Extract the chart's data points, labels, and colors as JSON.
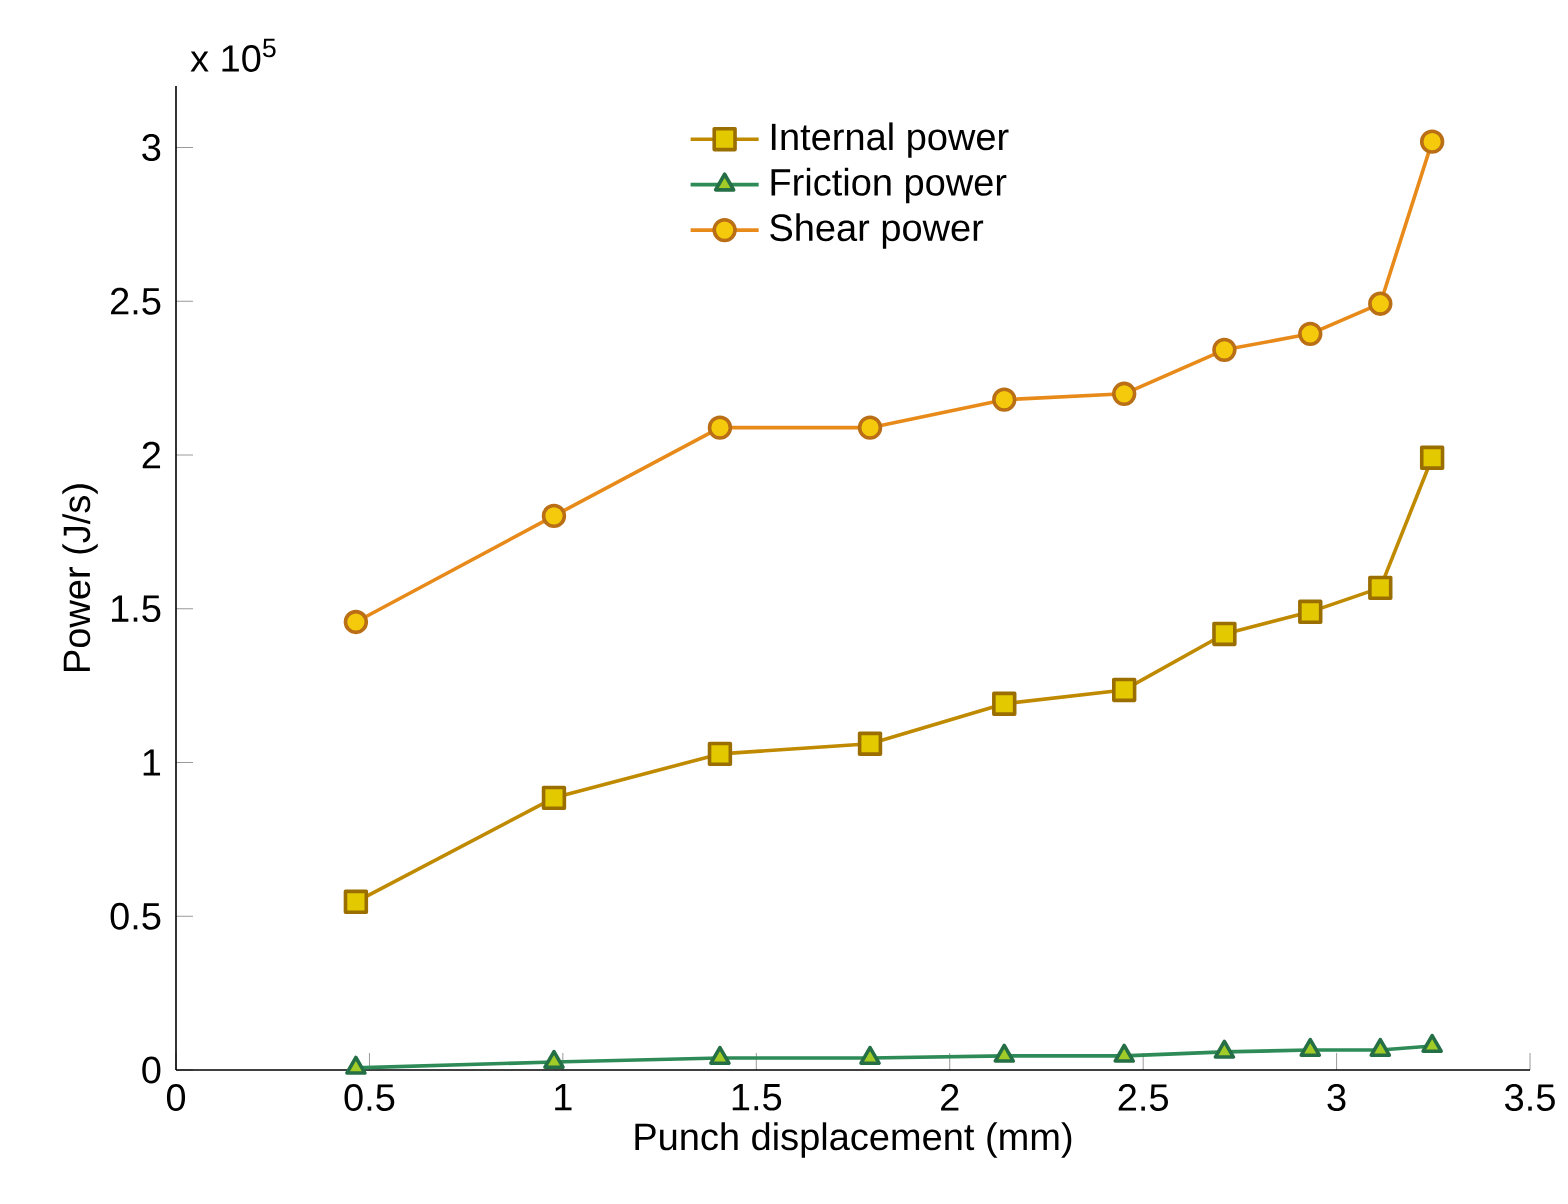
{
  "chart_data": {
    "type": "line",
    "xlabel": "Punch displacement (mm)",
    "ylabel": "Power (J/s)",
    "annotations": [
      "x 10$^{5}$"
    ],
    "x": [
      0.465,
      0.977,
      1.406,
      1.794,
      2.141,
      2.451,
      2.71,
      2.932,
      3.113,
      3.247
    ],
    "series": [
      {
        "name": "Internal power",
        "color": "#c08a00",
        "marker": "square",
        "values": [
          0.547,
          0.885,
          1.028,
          1.061,
          1.191,
          1.236,
          1.418,
          1.49,
          1.568,
          1.991
        ]
      },
      {
        "name": "Friction power",
        "color": "#2e8b57",
        "marker": "triangle",
        "values": [
          0.007,
          0.026,
          0.039,
          0.039,
          0.046,
          0.046,
          0.059,
          0.065,
          0.065,
          0.078
        ]
      },
      {
        "name": "Shear power",
        "color": "#e88a1a",
        "marker": "circle",
        "values": [
          1.457,
          1.802,
          2.089,
          2.089,
          2.18,
          2.199,
          2.342,
          2.394,
          2.492,
          3.019
        ]
      }
    ],
    "xlim": [
      0,
      3.5
    ],
    "xticks": [
      0,
      0.5,
      1,
      1.5,
      2,
      2.5,
      3,
      3.5
    ],
    "ylim": [
      0,
      3.2
    ],
    "yticks": [
      0,
      0.5,
      1,
      1.5,
      2,
      2.5,
      3
    ],
    "legend": "top",
    "grid": false
  }
}
